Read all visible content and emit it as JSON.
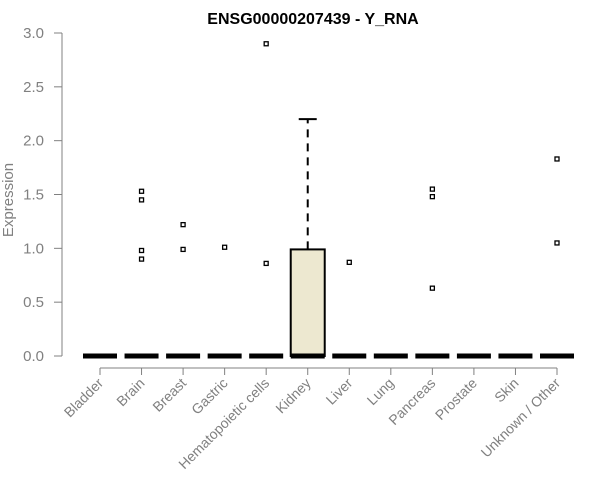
{
  "chart_data": {
    "type": "box",
    "title": "ENSG00000207439 - Y_RNA",
    "xlabel": "",
    "ylabel": "Expression",
    "ylim": [
      0,
      3.0
    ],
    "yticks": [
      "0.0",
      "0.5",
      "1.0",
      "1.5",
      "2.0",
      "2.5",
      "3.0"
    ],
    "grid": false,
    "box_fill": "#ede8d0",
    "categories": [
      "Bladder",
      "Brain",
      "Breast",
      "Gastric",
      "Hematopoietic cells",
      "Kidney",
      "Liver",
      "Lung",
      "Pancreas",
      "Prostate",
      "Skin",
      "Unknown / Other"
    ],
    "boxes": [
      {
        "q1": 0,
        "median": 0,
        "q3": 0,
        "whisker_low": 0,
        "whisker_high": 0,
        "outliers": []
      },
      {
        "q1": 0,
        "median": 0,
        "q3": 0,
        "whisker_low": 0,
        "whisker_high": 0,
        "outliers": [
          0.9,
          0.98,
          1.45,
          1.53
        ]
      },
      {
        "q1": 0,
        "median": 0,
        "q3": 0,
        "whisker_low": 0,
        "whisker_high": 0,
        "outliers": [
          0.99,
          1.22
        ]
      },
      {
        "q1": 0,
        "median": 0,
        "q3": 0,
        "whisker_low": 0,
        "whisker_high": 0,
        "outliers": [
          1.01
        ]
      },
      {
        "q1": 0,
        "median": 0,
        "q3": 0,
        "whisker_low": 0,
        "whisker_high": 0,
        "outliers": [
          0.86,
          2.9
        ]
      },
      {
        "q1": 0,
        "median": 0,
        "q3": 0.99,
        "whisker_low": 0,
        "whisker_high": 2.2,
        "outliers": []
      },
      {
        "q1": 0,
        "median": 0,
        "q3": 0,
        "whisker_low": 0,
        "whisker_high": 0,
        "outliers": [
          0.87
        ]
      },
      {
        "q1": 0,
        "median": 0,
        "q3": 0,
        "whisker_low": 0,
        "whisker_high": 0,
        "outliers": []
      },
      {
        "q1": 0,
        "median": 0,
        "q3": 0,
        "whisker_low": 0,
        "whisker_high": 0,
        "outliers": [
          0.63,
          1.48,
          1.55
        ]
      },
      {
        "q1": 0,
        "median": 0,
        "q3": 0,
        "whisker_low": 0,
        "whisker_high": 0,
        "outliers": []
      },
      {
        "q1": 0,
        "median": 0,
        "q3": 0,
        "whisker_low": 0,
        "whisker_high": 0,
        "outliers": []
      },
      {
        "q1": 0,
        "median": 0,
        "q3": 0,
        "whisker_low": 0,
        "whisker_high": 0,
        "outliers": [
          1.05,
          1.83
        ]
      }
    ]
  }
}
